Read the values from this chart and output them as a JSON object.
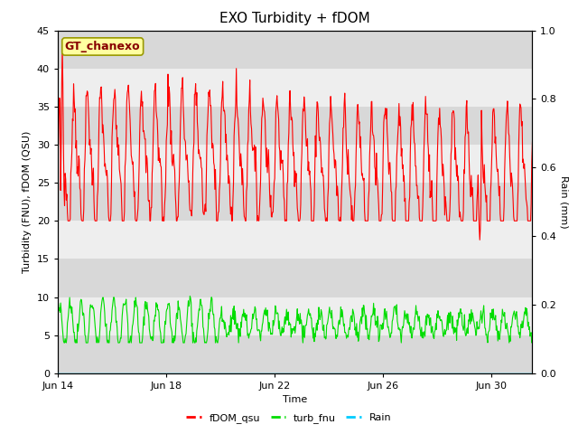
{
  "title": "EXO Turbidity + fDOM",
  "xlabel": "Time",
  "ylabel_left": "Turbidity (FNU), fDOM (QSU)",
  "ylabel_right": "Rain (mm)",
  "ylim_left": [
    0,
    45
  ],
  "ylim_right": [
    0.0,
    1.0
  ],
  "yticks_left": [
    0,
    5,
    10,
    15,
    20,
    25,
    30,
    35,
    40,
    45
  ],
  "yticks_right": [
    0.0,
    0.2,
    0.4,
    0.6,
    0.8,
    1.0
  ],
  "xtick_labels": [
    "Jun 14",
    "Jun 18",
    "Jun 22",
    "Jun 26",
    "Jun 30"
  ],
  "xtick_positions": [
    0,
    4,
    8,
    12,
    16
  ],
  "annotation_text": "GT_chanexo",
  "annotation_bbox_facecolor": "#ffffa0",
  "annotation_bbox_edgecolor": "#999900",
  "legend_labels": [
    "fDOM_qsu",
    "turb_fnu",
    "Rain"
  ],
  "fdom_color": "#ff0000",
  "turb_color": "#00dd00",
  "rain_color": "#00ccff",
  "bg_color": "#ffffff",
  "plot_bg_color": "#eeeeee",
  "band_dark_color": "#d8d8d8",
  "band_light_color": "#eeeeee",
  "title_fontsize": 11,
  "axis_label_fontsize": 8,
  "tick_fontsize": 8,
  "legend_fontsize": 8,
  "n_days": 18,
  "xlim_end": 17.5
}
